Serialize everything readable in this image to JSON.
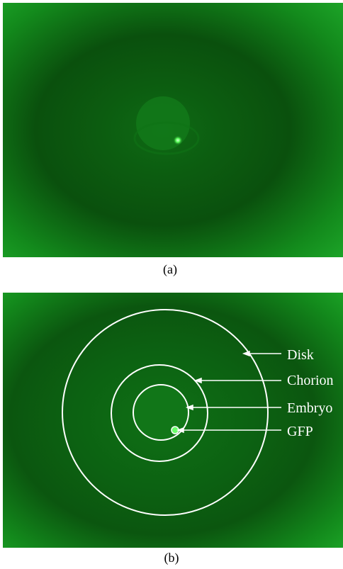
{
  "panels": [
    {
      "caption": "(a)"
    },
    {
      "caption": "(b)",
      "labels": [
        "Disk",
        "Chorion",
        "Embryo",
        "GFP"
      ]
    }
  ]
}
